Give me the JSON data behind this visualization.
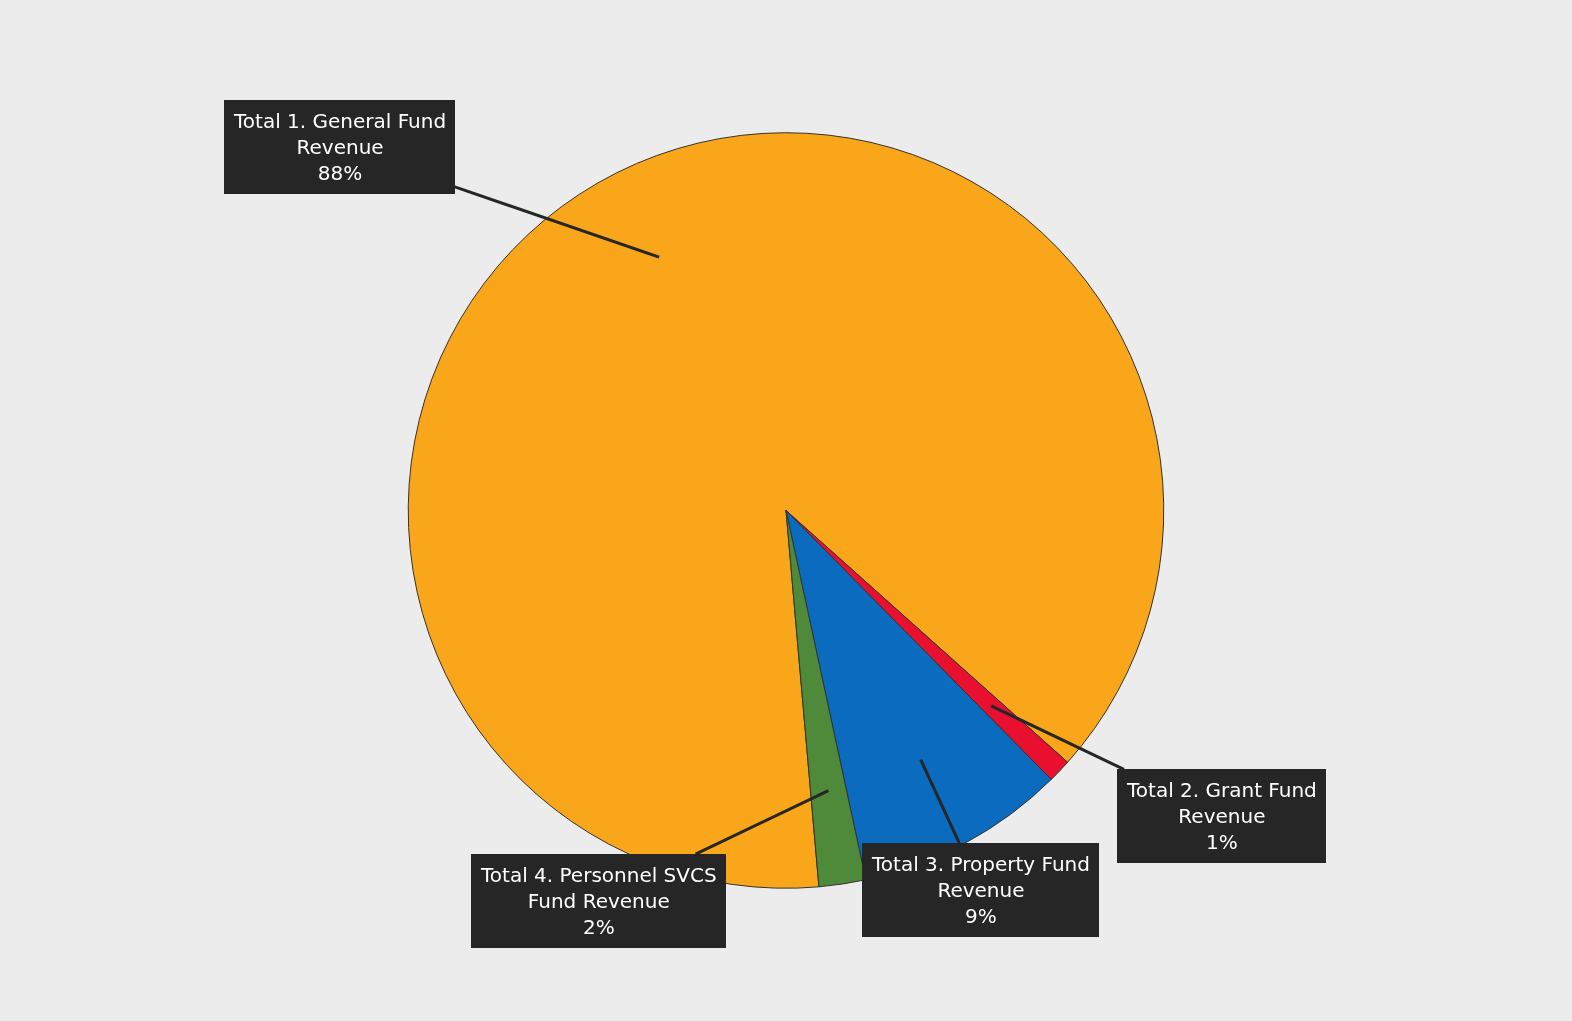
{
  "chart_data": {
    "type": "pie",
    "categories": [
      "Total 1. General Fund Revenue",
      "Total 2. Grant Fund Revenue",
      "Total 3. Property Fund Revenue",
      "Total 4. Personnel SVCS Fund Revenue"
    ],
    "values": [
      88,
      1,
      9,
      2
    ],
    "colors": [
      "#faa61a",
      "#e8102e",
      "#0b6bbf",
      "#4e8a3a"
    ],
    "value_labels": [
      "88%",
      "1%",
      "9%",
      "2%"
    ],
    "legend": false
  }
}
